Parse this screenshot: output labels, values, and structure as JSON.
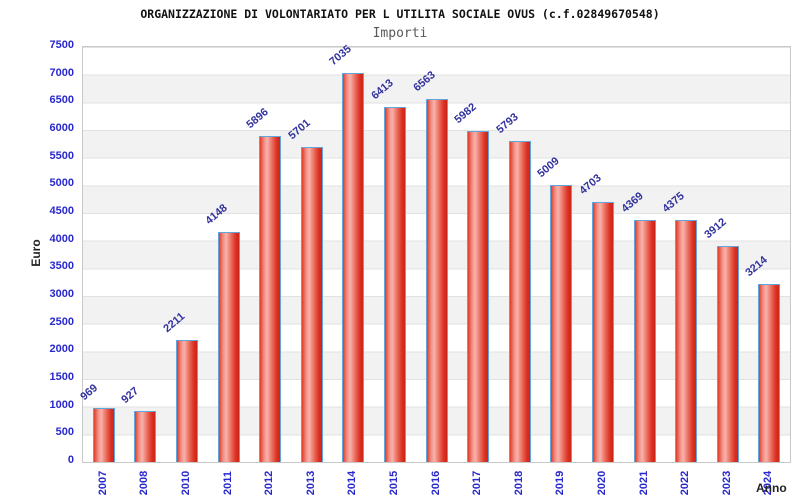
{
  "chart_data": {
    "type": "bar",
    "title": "ORGANIZZAZIONE DI VOLONTARIATO PER L UTILITA SOCIALE OVUS (c.f.02849670548)",
    "subtitle": "Importi",
    "xlabel": "Anno",
    "ylabel": "Euro",
    "categories": [
      "2007",
      "2008",
      "2010",
      "2011",
      "2012",
      "2013",
      "2014",
      "2015",
      "2016",
      "2017",
      "2018",
      "2019",
      "2020",
      "2021",
      "2022",
      "2023",
      "2024"
    ],
    "values": [
      969,
      927,
      2211,
      4148,
      5896,
      5701,
      7035,
      6413,
      6563,
      5982,
      5793,
      5009,
      4703,
      4369,
      4375,
      3912,
      3214
    ],
    "ylim": [
      0,
      7500
    ],
    "ytick_step": 500,
    "grid": true,
    "legend": false,
    "zebra_bands": true,
    "colors": {
      "bar_fill_main": "#e23a25",
      "bar_fill_highlight": "#f9b3ac",
      "bar_border": "#62a4dc",
      "axis_tick_label": "#2828cc",
      "value_label": "#32329e",
      "band_gray": "#f2f2f2",
      "grid_line": "#e2e2e2",
      "title": "#111111",
      "subtitle": "#5a5a5a"
    }
  }
}
